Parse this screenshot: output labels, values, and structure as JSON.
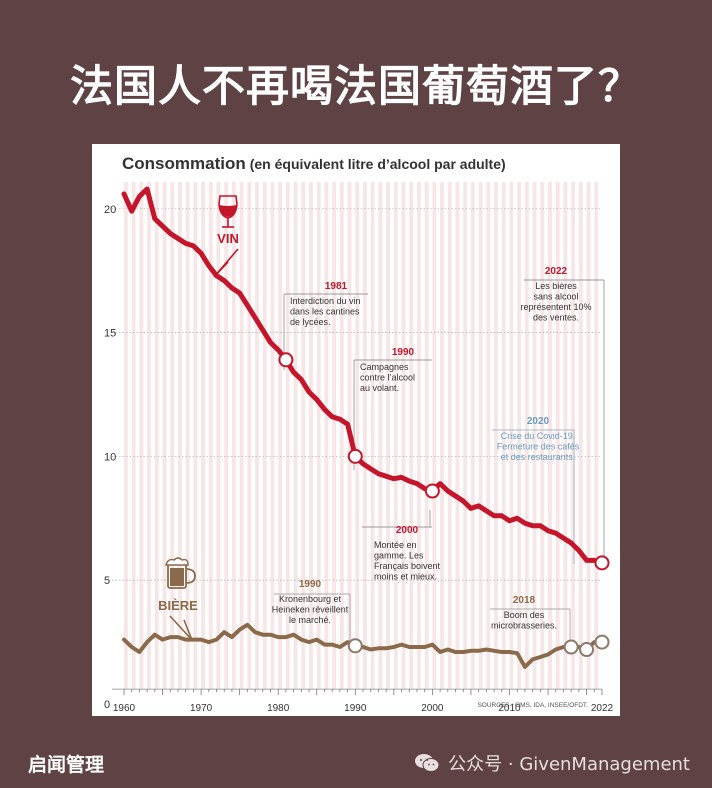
{
  "headline": "法国人不再喝法国葡萄酒了？",
  "footer": {
    "left": "启闻管理",
    "right": "公众号 · GivenManagement"
  },
  "colors": {
    "background": "#5e4244",
    "wine": "#c5152a",
    "beer": "#8a6a4a",
    "accent_gray": "#9a9a9a",
    "blue_label": "#6a9ac0"
  },
  "chart_data": {
    "type": "line",
    "title": "Consommation",
    "subtitle": "(en équivalent litre d’alcool par adulte)",
    "xlim": [
      1960,
      2022
    ],
    "ylim": [
      0,
      21
    ],
    "x_ticks": [
      1960,
      1970,
      1980,
      1990,
      2000,
      2010,
      2022
    ],
    "y_ticks": [
      0,
      5,
      10,
      15,
      20
    ],
    "source": "SOURCES : OMS, IDA, INSEE/OFDT.",
    "series": [
      {
        "name": "VIN",
        "color": "#c5152a",
        "points": [
          [
            1960,
            20.6
          ],
          [
            1961,
            19.9
          ],
          [
            1962,
            20.5
          ],
          [
            1963,
            20.8
          ],
          [
            1964,
            19.6
          ],
          [
            1965,
            19.3
          ],
          [
            1966,
            19.0
          ],
          [
            1967,
            18.8
          ],
          [
            1968,
            18.6
          ],
          [
            1969,
            18.5
          ],
          [
            1970,
            18.2
          ],
          [
            1971,
            17.7
          ],
          [
            1972,
            17.3
          ],
          [
            1973,
            17.1
          ],
          [
            1974,
            16.8
          ],
          [
            1975,
            16.6
          ],
          [
            1976,
            16.1
          ],
          [
            1977,
            15.6
          ],
          [
            1978,
            15.1
          ],
          [
            1979,
            14.6
          ],
          [
            1980,
            14.3
          ],
          [
            1981,
            13.9
          ],
          [
            1982,
            13.4
          ],
          [
            1983,
            13.1
          ],
          [
            1984,
            12.6
          ],
          [
            1985,
            12.3
          ],
          [
            1986,
            11.9
          ],
          [
            1987,
            11.6
          ],
          [
            1988,
            11.5
          ],
          [
            1989,
            11.3
          ],
          [
            1990,
            10.0
          ],
          [
            1991,
            9.7
          ],
          [
            1992,
            9.5
          ],
          [
            1993,
            9.3
          ],
          [
            1994,
            9.2
          ],
          [
            1995,
            9.1
          ],
          [
            1996,
            9.15
          ],
          [
            1997,
            9.0
          ],
          [
            1998,
            8.9
          ],
          [
            1999,
            8.7
          ],
          [
            2000,
            8.6
          ],
          [
            2001,
            8.9
          ],
          [
            2002,
            8.6
          ],
          [
            2003,
            8.4
          ],
          [
            2004,
            8.2
          ],
          [
            2005,
            7.9
          ],
          [
            2006,
            8.0
          ],
          [
            2007,
            7.8
          ],
          [
            2008,
            7.6
          ],
          [
            2009,
            7.6
          ],
          [
            2010,
            7.4
          ],
          [
            2011,
            7.5
          ],
          [
            2012,
            7.3
          ],
          [
            2013,
            7.2
          ],
          [
            2014,
            7.2
          ],
          [
            2015,
            7.0
          ],
          [
            2016,
            6.9
          ],
          [
            2017,
            6.7
          ],
          [
            2018,
            6.5
          ],
          [
            2019,
            6.2
          ],
          [
            2020,
            5.8
          ],
          [
            2021,
            5.8
          ],
          [
            2022,
            5.7
          ]
        ]
      },
      {
        "name": "BIÈRE",
        "color": "#8a6a4a",
        "points": [
          [
            1960,
            2.6
          ],
          [
            1961,
            2.3
          ],
          [
            1962,
            2.1
          ],
          [
            1963,
            2.5
          ],
          [
            1964,
            2.8
          ],
          [
            1965,
            2.6
          ],
          [
            1966,
            2.7
          ],
          [
            1967,
            2.7
          ],
          [
            1968,
            2.6
          ],
          [
            1969,
            2.6
          ],
          [
            1970,
            2.6
          ],
          [
            1971,
            2.5
          ],
          [
            1972,
            2.6
          ],
          [
            1973,
            2.9
          ],
          [
            1974,
            2.7
          ],
          [
            1975,
            3.0
          ],
          [
            1976,
            3.2
          ],
          [
            1977,
            2.9
          ],
          [
            1978,
            2.8
          ],
          [
            1979,
            2.8
          ],
          [
            1980,
            2.7
          ],
          [
            1981,
            2.7
          ],
          [
            1982,
            2.8
          ],
          [
            1983,
            2.6
          ],
          [
            1984,
            2.5
          ],
          [
            1985,
            2.6
          ],
          [
            1986,
            2.4
          ],
          [
            1987,
            2.4
          ],
          [
            1988,
            2.3
          ],
          [
            1989,
            2.5
          ],
          [
            1990,
            2.35
          ],
          [
            1991,
            2.3
          ],
          [
            1992,
            2.2
          ],
          [
            1993,
            2.25
          ],
          [
            1994,
            2.25
          ],
          [
            1995,
            2.3
          ],
          [
            1996,
            2.4
          ],
          [
            1997,
            2.3
          ],
          [
            1998,
            2.3
          ],
          [
            1999,
            2.3
          ],
          [
            2000,
            2.4
          ],
          [
            2001,
            2.1
          ],
          [
            2002,
            2.2
          ],
          [
            2003,
            2.1
          ],
          [
            2004,
            2.1
          ],
          [
            2005,
            2.15
          ],
          [
            2006,
            2.15
          ],
          [
            2007,
            2.2
          ],
          [
            2008,
            2.15
          ],
          [
            2009,
            2.1
          ],
          [
            2010,
            2.1
          ],
          [
            2011,
            2.05
          ],
          [
            2012,
            1.5
          ],
          [
            2013,
            1.8
          ],
          [
            2014,
            1.9
          ],
          [
            2015,
            2.0
          ],
          [
            2016,
            2.2
          ],
          [
            2017,
            2.3
          ],
          [
            2018,
            2.3
          ],
          [
            2019,
            2.3
          ],
          [
            2020,
            2.2
          ],
          [
            2021,
            2.5
          ],
          [
            2022,
            2.5
          ]
        ]
      }
    ],
    "markers": [
      {
        "series": 0,
        "x": 1981,
        "y": 13.9
      },
      {
        "series": 0,
        "x": 1990,
        "y": 10.0
      },
      {
        "series": 0,
        "x": 2000,
        "y": 8.6
      },
      {
        "series": 0,
        "x": 2022,
        "y": 5.7
      },
      {
        "series": 1,
        "x": 1990,
        "y": 2.35
      },
      {
        "series": 1,
        "x": 2018,
        "y": 2.3
      },
      {
        "series": 1,
        "x": 2020,
        "y": 2.2
      },
      {
        "series": 1,
        "x": 2022,
        "y": 2.5
      }
    ],
    "annotations": [
      {
        "year": "1981",
        "lines": [
          "Interdiction du vin",
          "dans les cantines",
          "de lycées."
        ],
        "style": "red"
      },
      {
        "year": "1990",
        "lines": [
          "Campagnes",
          "contre l’alcool",
          "au volant."
        ],
        "style": "red"
      },
      {
        "year": "2000",
        "lines": [
          "Montée en",
          "gamme. Les",
          "Français boivent",
          "moins et mieux."
        ],
        "style": "red"
      },
      {
        "year": "2022",
        "lines": [
          "Les bières",
          "sans alcool",
          "représentent 10%",
          "des ventes."
        ],
        "style": "red"
      },
      {
        "year": "2020",
        "lines": [
          "Crise du Covid-19.",
          "Fermeture des cafés",
          "et des restaurants."
        ],
        "style": "blue"
      },
      {
        "year": "1990",
        "lines": [
          "Kronenbourg et",
          "Heineken réveillent",
          "le marché."
        ],
        "style": "brown"
      },
      {
        "year": "2018",
        "lines": [
          "Boom des",
          "microbrasseries."
        ],
        "style": "brown"
      }
    ]
  }
}
